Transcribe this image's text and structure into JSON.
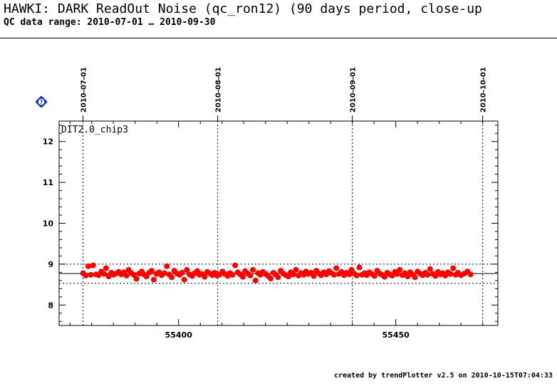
{
  "header": {
    "title": "HAWKI: DARK ReadOut Noise (qc_ron12) (90 days period, close-up",
    "subtitle": "QC data range: 2010-07-01 … 2010-09-30"
  },
  "footer": {
    "text": "created by trendPlotter v2.5 on 2010-10-15T07:04:33"
  },
  "colors": {
    "points": "#ff0000",
    "help_icon": "#1a3fd6"
  },
  "icons": {
    "help": "help-diamond-icon"
  },
  "chart_data": {
    "type": "scatter",
    "panel_label": "DIT2.0_chip3",
    "xlim": [
      55372.5,
      55473.5
    ],
    "ylim": [
      7.5,
      12.5
    ],
    "x_ticks": [
      55400,
      55450
    ],
    "x_tick_labels": [
      "55400",
      "55450"
    ],
    "y_ticks": [
      8,
      9,
      10,
      11,
      12
    ],
    "y_tick_labels": [
      "8",
      "9",
      "10",
      "11",
      "12"
    ],
    "date_markers": [
      {
        "x": 55378,
        "label": "2010-07-01"
      },
      {
        "x": 55409,
        "label": "2010-08-01"
      },
      {
        "x": 55440,
        "label": "2010-09-01"
      },
      {
        "x": 55470,
        "label": "2010-10-01"
      }
    ],
    "mean_line": 8.77,
    "limit_lines": [
      8.53,
      9.0
    ],
    "xlabel": "",
    "ylabel": "",
    "points": [
      [
        55378.0,
        8.78
      ],
      [
        55378.6,
        8.72
      ],
      [
        55379.2,
        8.95
      ],
      [
        55379.8,
        8.74
      ],
      [
        55380.3,
        8.97
      ],
      [
        55381.0,
        8.75
      ],
      [
        55381.6,
        8.73
      ],
      [
        55382.2,
        8.82
      ],
      [
        55382.8,
        8.76
      ],
      [
        55383.3,
        8.9
      ],
      [
        55383.9,
        8.7
      ],
      [
        55384.5,
        8.79
      ],
      [
        55385.0,
        8.74
      ],
      [
        55385.6,
        8.77
      ],
      [
        55386.2,
        8.81
      ],
      [
        55386.8,
        8.75
      ],
      [
        55387.4,
        8.8
      ],
      [
        55388.0,
        8.72
      ],
      [
        55388.5,
        8.86
      ],
      [
        55389.1,
        8.78
      ],
      [
        55389.7,
        8.74
      ],
      [
        55390.3,
        8.64
      ],
      [
        55390.9,
        8.77
      ],
      [
        55391.5,
        8.82
      ],
      [
        55392.0,
        8.75
      ],
      [
        55392.6,
        8.7
      ],
      [
        55393.2,
        8.79
      ],
      [
        55393.8,
        8.84
      ],
      [
        55394.3,
        8.62
      ],
      [
        55394.9,
        8.76
      ],
      [
        55395.5,
        8.8
      ],
      [
        55396.1,
        8.73
      ],
      [
        55396.7,
        8.78
      ],
      [
        55397.3,
        8.95
      ],
      [
        55397.8,
        8.75
      ],
      [
        55398.4,
        8.68
      ],
      [
        55399.0,
        8.84
      ],
      [
        55399.6,
        8.77
      ],
      [
        55400.2,
        8.74
      ],
      [
        55400.8,
        8.79
      ],
      [
        55401.3,
        8.62
      ],
      [
        55401.9,
        8.86
      ],
      [
        55402.5,
        8.75
      ],
      [
        55403.1,
        8.71
      ],
      [
        55403.7,
        8.78
      ],
      [
        55404.3,
        8.83
      ],
      [
        55404.8,
        8.74
      ],
      [
        55405.4,
        8.76
      ],
      [
        55406.0,
        8.69
      ],
      [
        55406.6,
        8.81
      ],
      [
        55407.2,
        8.77
      ],
      [
        55407.8,
        8.73
      ],
      [
        55408.3,
        8.79
      ],
      [
        55408.9,
        8.72
      ],
      [
        55409.5,
        8.75
      ],
      [
        55410.1,
        8.82
      ],
      [
        55410.7,
        8.76
      ],
      [
        55411.3,
        8.71
      ],
      [
        55411.8,
        8.78
      ],
      [
        55412.4,
        8.74
      ],
      [
        55413.0,
        8.97
      ],
      [
        55413.6,
        8.8
      ],
      [
        55414.2,
        8.75
      ],
      [
        55414.8,
        8.69
      ],
      [
        55415.3,
        8.83
      ],
      [
        55415.9,
        8.77
      ],
      [
        55416.5,
        8.72
      ],
      [
        55417.1,
        8.86
      ],
      [
        55417.7,
        8.6
      ],
      [
        55418.3,
        8.78
      ],
      [
        55418.8,
        8.74
      ],
      [
        55419.4,
        8.81
      ],
      [
        55420.0,
        8.76
      ],
      [
        55420.6,
        8.71
      ],
      [
        55421.2,
        8.65
      ],
      [
        55421.8,
        8.79
      ],
      [
        55422.3,
        8.75
      ],
      [
        55422.9,
        8.68
      ],
      [
        55423.5,
        8.84
      ],
      [
        55424.1,
        8.77
      ],
      [
        55424.7,
        8.73
      ],
      [
        55425.3,
        8.7
      ],
      [
        55425.8,
        8.8
      ],
      [
        55426.4,
        8.75
      ],
      [
        55427.0,
        8.86
      ],
      [
        55427.6,
        8.72
      ],
      [
        55428.2,
        8.78
      ],
      [
        55428.8,
        8.74
      ],
      [
        55429.3,
        8.82
      ],
      [
        55429.9,
        8.76
      ],
      [
        55430.5,
        8.79
      ],
      [
        55431.1,
        8.71
      ],
      [
        55431.7,
        8.84
      ],
      [
        55432.3,
        8.77
      ],
      [
        55432.8,
        8.73
      ],
      [
        55433.4,
        8.8
      ],
      [
        55434.0,
        8.75
      ],
      [
        55434.6,
        8.83
      ],
      [
        55435.2,
        8.78
      ],
      [
        55435.8,
        8.74
      ],
      [
        55436.3,
        8.9
      ],
      [
        55436.9,
        8.76
      ],
      [
        55437.5,
        8.81
      ],
      [
        55438.1,
        8.73
      ],
      [
        55438.7,
        8.79
      ],
      [
        55439.3,
        8.75
      ],
      [
        55439.8,
        8.86
      ],
      [
        55440.4,
        8.77
      ],
      [
        55441.0,
        8.72
      ],
      [
        55441.6,
        8.92
      ],
      [
        55442.2,
        8.74
      ],
      [
        55442.8,
        8.78
      ],
      [
        55443.3,
        8.73
      ],
      [
        55443.9,
        8.8
      ],
      [
        55444.5,
        8.76
      ],
      [
        55445.1,
        8.71
      ],
      [
        55445.7,
        8.84
      ],
      [
        55446.3,
        8.77
      ],
      [
        55446.8,
        8.74
      ],
      [
        55447.4,
        8.69
      ],
      [
        55448.0,
        8.79
      ],
      [
        55448.6,
        8.75
      ],
      [
        55449.2,
        8.72
      ],
      [
        55449.8,
        8.81
      ],
      [
        55450.3,
        8.76
      ],
      [
        55450.9,
        8.86
      ],
      [
        55451.5,
        8.73
      ],
      [
        55452.1,
        8.78
      ],
      [
        55452.7,
        8.7
      ],
      [
        55453.3,
        8.8
      ],
      [
        55453.8,
        8.75
      ],
      [
        55454.4,
        8.68
      ],
      [
        55455.0,
        8.82
      ],
      [
        55455.6,
        8.77
      ],
      [
        55456.2,
        8.73
      ],
      [
        55456.8,
        8.79
      ],
      [
        55457.3,
        8.74
      ],
      [
        55457.9,
        8.88
      ],
      [
        55458.5,
        8.76
      ],
      [
        55459.1,
        8.71
      ],
      [
        55459.7,
        8.81
      ],
      [
        55460.3,
        8.75
      ],
      [
        55460.8,
        8.78
      ],
      [
        55461.4,
        8.72
      ],
      [
        55462.0,
        8.8
      ],
      [
        55462.6,
        8.76
      ],
      [
        55463.2,
        8.9
      ],
      [
        55463.8,
        8.74
      ],
      [
        55464.3,
        8.79
      ],
      [
        55465.0,
        8.73
      ],
      [
        55465.8,
        8.77
      ],
      [
        55466.5,
        8.82
      ],
      [
        55467.2,
        8.75
      ]
    ]
  }
}
